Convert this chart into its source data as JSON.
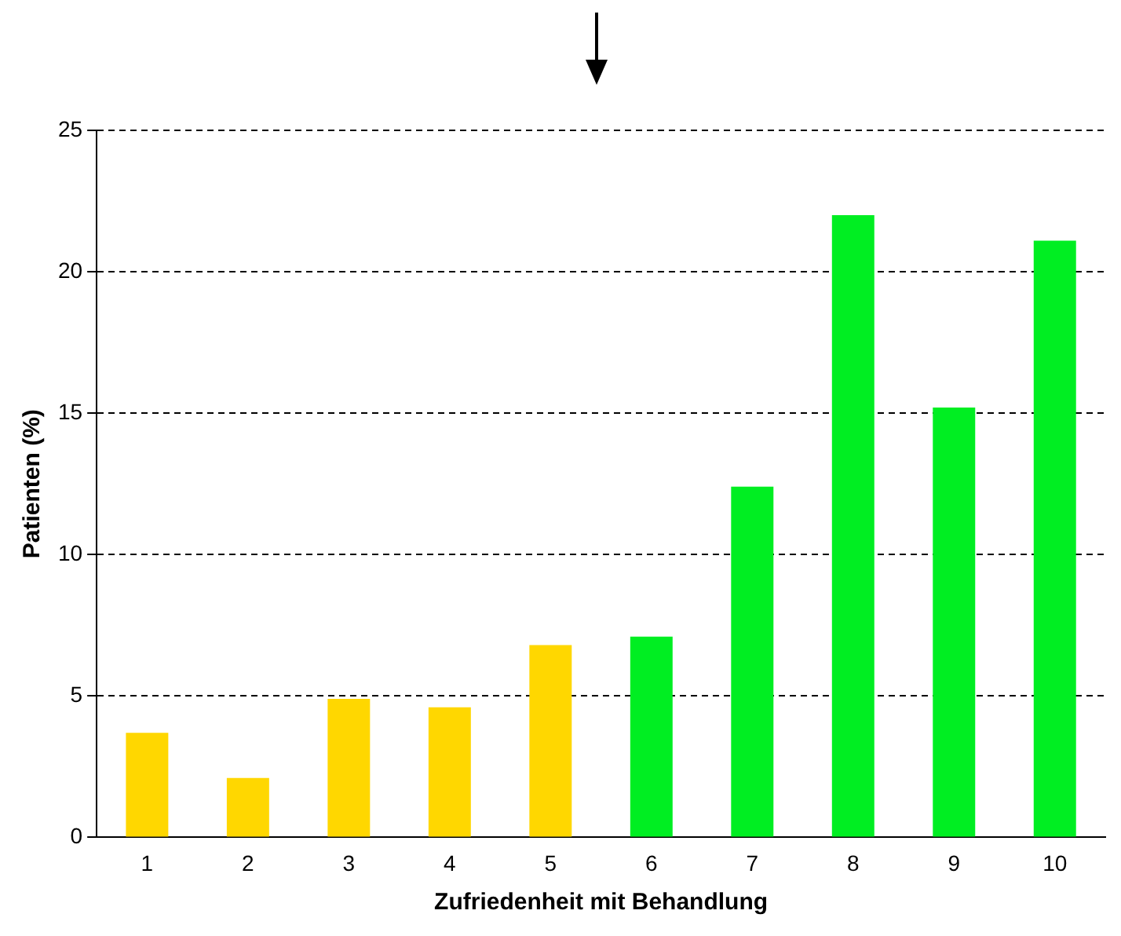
{
  "chart_data": {
    "type": "bar",
    "xlabel": "Zufriedenheit mit Behandlung",
    "ylabel": "Patienten (%)",
    "categories": [
      "1",
      "2",
      "3",
      "4",
      "5",
      "6",
      "7",
      "8",
      "9",
      "10"
    ],
    "values": [
      3.7,
      2.1,
      4.9,
      4.6,
      6.8,
      7.1,
      12.4,
      22.0,
      15.2,
      21.1
    ],
    "colors": [
      "#ffd700",
      "#ffd700",
      "#ffd700",
      "#ffd700",
      "#ffd700",
      "#00ee22",
      "#00ee22",
      "#00ee22",
      "#00ee22",
      "#00ee22"
    ],
    "ylim": [
      0,
      25
    ],
    "yticks": [
      0,
      5,
      10,
      15,
      20,
      25
    ],
    "grid": "y",
    "legend": false
  }
}
